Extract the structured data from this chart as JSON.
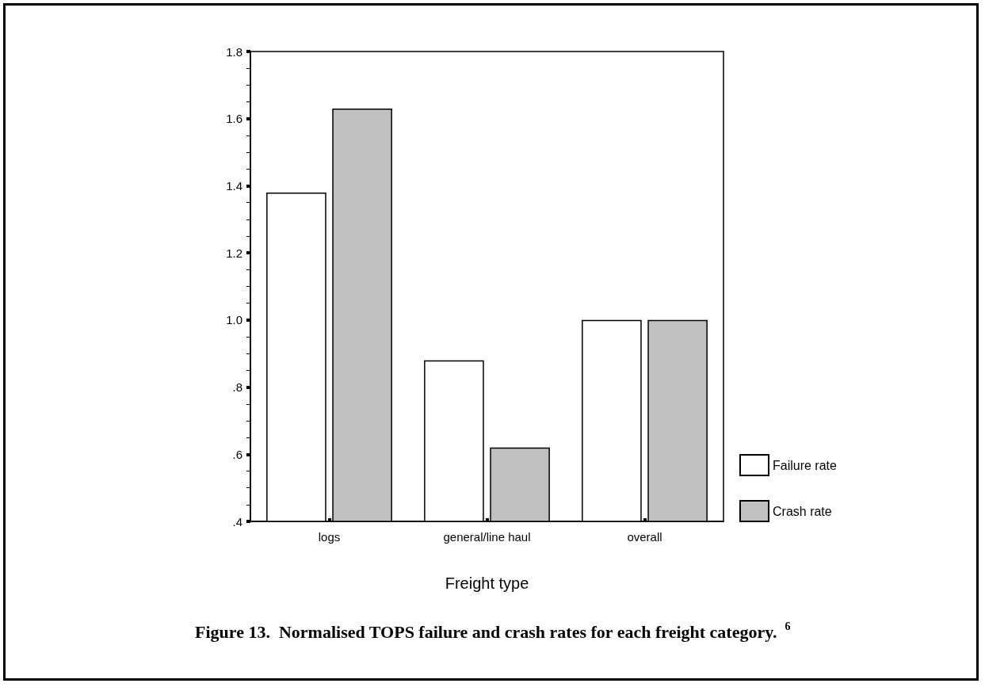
{
  "chart_data": {
    "type": "bar",
    "title": "Figure 13.  Normalised TOPS failure and crash rates for each freight category. $^{6}$",
    "xlabel": "Freight type",
    "categories": [
      "logs",
      "general/line haul",
      "overall"
    ],
    "series": [
      {
        "name": "Failure rate",
        "color": "#ffffff",
        "values": [
          1.38,
          0.88,
          1.0
        ]
      },
      {
        "name": "Crash rate",
        "color": "#c0c0c0",
        "values": [
          1.63,
          0.62,
          1.0
        ]
      }
    ],
    "ylim": [
      0.4,
      1.8
    ],
    "yticks": [
      {
        "value": 0.4,
        "label": ".4"
      },
      {
        "value": 0.6,
        "label": ".6"
      },
      {
        "value": 0.8,
        "label": ".8"
      },
      {
        "value": 1.0,
        "label": "1.0"
      },
      {
        "value": 1.2,
        "label": "1.2"
      },
      {
        "value": 1.4,
        "label": "1.4"
      },
      {
        "value": 1.6,
        "label": "1.6"
      },
      {
        "value": 1.8,
        "label": "1.8"
      }
    ],
    "grid": false,
    "legend": "bottom right"
  }
}
